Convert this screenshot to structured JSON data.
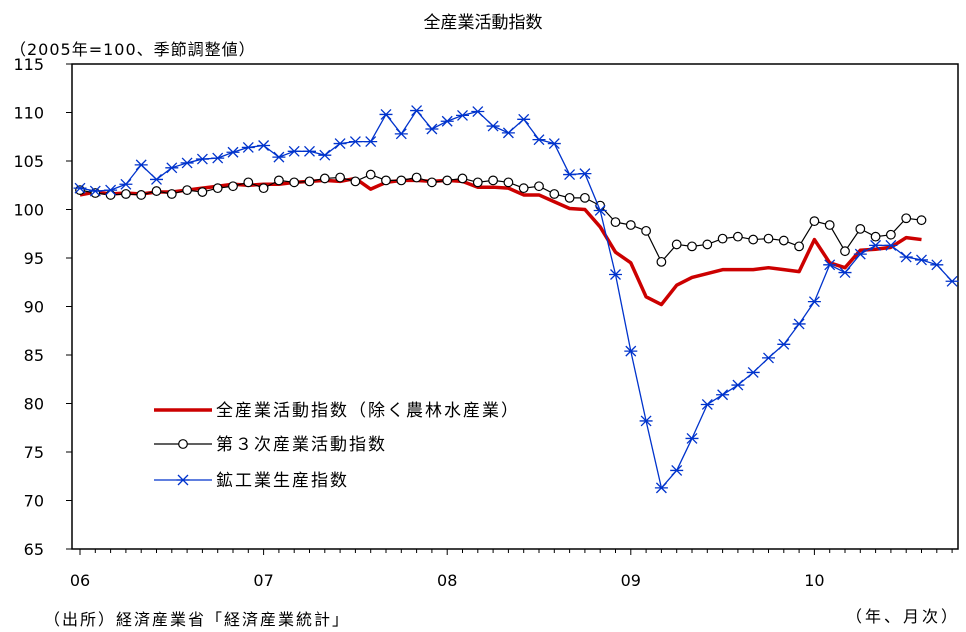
{
  "chart_data": {
    "type": "line",
    "title": "全産業活動指数",
    "ylabel": "（2005年=100、季節調整値）",
    "xlabel": "（年、月次）",
    "source": "（出所）経済産業省「経済産業統計」",
    "ylim": [
      65,
      115
    ],
    "yticks": [
      65,
      70,
      75,
      80,
      85,
      90,
      95,
      100,
      105,
      110,
      115
    ],
    "year_labels": [
      {
        "label": "06",
        "month_index": 0
      },
      {
        "label": "07",
        "month_index": 12
      },
      {
        "label": "08",
        "month_index": 24
      },
      {
        "label": "09",
        "month_index": 36
      },
      {
        "label": "10",
        "month_index": 48
      }
    ],
    "x_range": [
      0,
      57
    ],
    "legend_position": "lower-left",
    "series": [
      {
        "name": "全産業活動指数（除く農林水産業）",
        "color": "#cc0000",
        "marker": "none",
        "x": [
          0,
          1,
          2,
          3,
          4,
          5,
          6,
          7,
          8,
          9,
          10,
          11,
          12,
          13,
          14,
          15,
          16,
          17,
          18,
          19,
          20,
          21,
          22,
          23,
          24,
          25,
          26,
          27,
          28,
          29,
          30,
          31,
          32,
          33,
          34,
          35,
          36,
          37,
          38,
          39,
          40,
          41,
          42,
          43,
          44,
          45,
          46,
          47,
          48,
          49,
          50,
          51,
          52,
          53,
          54,
          55
        ],
        "values": [
          101.5,
          101.8,
          101.6,
          101.7,
          101.6,
          101.8,
          101.8,
          102.0,
          102.2,
          102.4,
          102.6,
          102.5,
          102.6,
          102.6,
          102.8,
          102.9,
          103.0,
          102.9,
          103.2,
          102.1,
          102.8,
          103.0,
          103.0,
          102.9,
          103.0,
          102.9,
          102.3,
          102.3,
          102.2,
          101.5,
          101.5,
          100.8,
          100.1,
          100.0,
          98.2,
          95.6,
          94.5,
          91.0,
          90.2,
          92.2,
          93.0,
          93.4,
          93.8,
          93.8,
          93.8,
          94.0,
          93.8,
          93.6,
          96.9,
          94.5,
          94.0,
          95.8,
          95.9,
          96.1,
          97.1,
          96.9
        ]
      },
      {
        "name": "第３次産業活動指数",
        "color": "#000000",
        "marker": "circle",
        "x": [
          0,
          1,
          2,
          3,
          4,
          5,
          6,
          7,
          8,
          9,
          10,
          11,
          12,
          13,
          14,
          15,
          16,
          17,
          18,
          19,
          20,
          21,
          22,
          23,
          24,
          25,
          26,
          27,
          28,
          29,
          30,
          31,
          32,
          33,
          34,
          35,
          36,
          37,
          38,
          39,
          40,
          41,
          42,
          43,
          44,
          45,
          46,
          47,
          48,
          49,
          50,
          51,
          52,
          53,
          54,
          55
        ],
        "values": [
          102.0,
          101.7,
          101.5,
          101.6,
          101.5,
          101.9,
          101.6,
          102.0,
          101.8,
          102.2,
          102.4,
          102.8,
          102.2,
          103.0,
          102.8,
          102.9,
          103.2,
          103.3,
          102.9,
          103.6,
          103.0,
          103.0,
          103.3,
          102.8,
          103.0,
          103.2,
          102.8,
          103.0,
          102.8,
          102.2,
          102.4,
          101.6,
          101.2,
          101.2,
          100.4,
          98.7,
          98.4,
          97.8,
          94.6,
          96.4,
          96.2,
          96.4,
          97.0,
          97.2,
          96.9,
          97.0,
          96.8,
          96.2,
          98.8,
          98.4,
          95.7,
          98.0,
          97.2,
          97.4,
          99.1,
          98.9
        ]
      },
      {
        "name": "鉱工業生産指数",
        "color": "#0033cc",
        "marker": "asterisk",
        "x": [
          0,
          1,
          2,
          3,
          4,
          5,
          6,
          7,
          8,
          9,
          10,
          11,
          12,
          13,
          14,
          15,
          16,
          17,
          18,
          19,
          20,
          21,
          22,
          23,
          24,
          25,
          26,
          27,
          28,
          29,
          30,
          31,
          32,
          33,
          34,
          35,
          36,
          37,
          38,
          39,
          40,
          41,
          42,
          43,
          44,
          45,
          46,
          47,
          48,
          49,
          50,
          51,
          52,
          53,
          54,
          55,
          56,
          57
        ],
        "values": [
          102.2,
          101.9,
          102.0,
          102.6,
          104.6,
          103.1,
          104.3,
          104.8,
          105.2,
          105.3,
          105.9,
          106.4,
          106.6,
          105.4,
          106.0,
          106.0,
          105.6,
          106.8,
          107.0,
          107.0,
          109.8,
          107.8,
          110.2,
          108.3,
          109.1,
          109.7,
          110.1,
          108.6,
          107.9,
          109.3,
          107.2,
          106.8,
          103.6,
          103.7,
          99.9,
          93.3,
          85.4,
          78.2,
          71.3,
          73.1,
          76.4,
          79.9,
          80.9,
          81.9,
          83.2,
          84.7,
          86.1,
          88.2,
          90.5,
          94.3,
          93.5,
          95.4,
          96.3,
          96.3,
          95.1,
          94.8,
          94.3,
          92.6
        ]
      }
    ]
  }
}
